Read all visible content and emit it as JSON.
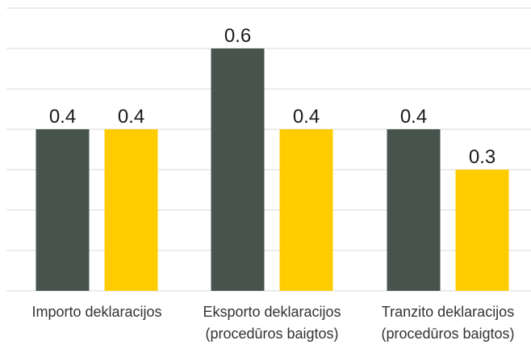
{
  "chart_data": {
    "type": "bar",
    "categories": [
      [
        "Importo deklaracijos"
      ],
      [
        "Eksporto deklaracijos",
        "(procedūros baigtos)"
      ],
      [
        "Tranzito deklaracijos",
        "(procedūros baigtos)"
      ]
    ],
    "series": [
      {
        "values": [
          0.4,
          0.6,
          0.4
        ],
        "color": "#46544d"
      },
      {
        "values": [
          0.4,
          0.4,
          0.3
        ],
        "color": "#ffcc00"
      }
    ],
    "ylim": [
      0,
      0.7
    ],
    "grid": true,
    "legend": "none",
    "title": "",
    "xlabel": "",
    "ylabel": ""
  }
}
